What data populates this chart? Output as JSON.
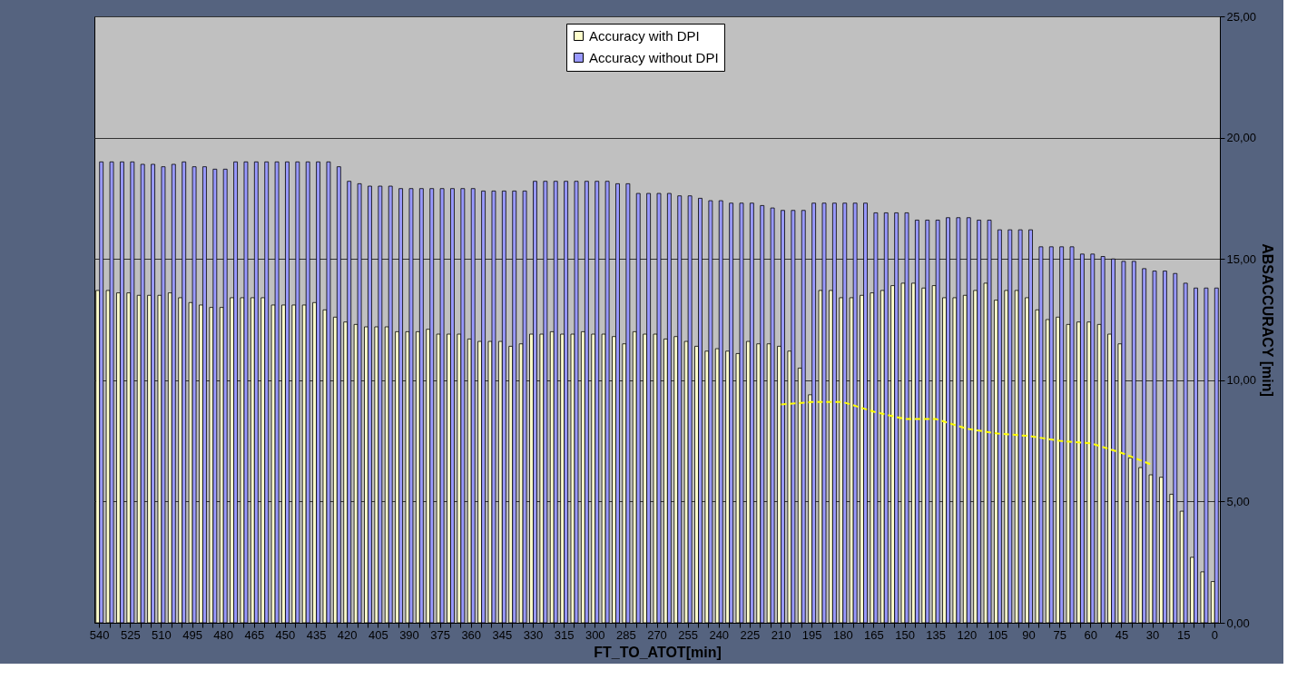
{
  "chart_data": {
    "type": "bar",
    "xlabel": "FT_TO_ATOT[min]",
    "ylabel": "ABSACCURACY [min]",
    "categories": [
      "540",
      null,
      null,
      "525",
      null,
      null,
      "510",
      null,
      null,
      "495",
      null,
      null,
      "480",
      null,
      null,
      "465",
      null,
      null,
      "450",
      null,
      null,
      "435",
      null,
      null,
      "420",
      null,
      null,
      "405",
      null,
      null,
      "390",
      null,
      null,
      "375",
      null,
      null,
      "360",
      null,
      null,
      "345",
      null,
      null,
      "330",
      null,
      null,
      "315",
      null,
      null,
      "300",
      null,
      null,
      "285",
      null,
      null,
      "270",
      null,
      null,
      "255",
      null,
      null,
      "240",
      null,
      null,
      "225",
      null,
      null,
      "210",
      null,
      null,
      "195",
      null,
      null,
      "180",
      null,
      null,
      "165",
      null,
      null,
      "150",
      null,
      null,
      "135",
      null,
      null,
      "120",
      null,
      null,
      "105",
      null,
      null,
      "90",
      null,
      null,
      "75",
      null,
      null,
      "60",
      null,
      null,
      "45",
      null,
      null,
      "30",
      null,
      null,
      "15",
      null,
      null,
      "0"
    ],
    "series": [
      {
        "name": "Accuracy with DPI",
        "color": "#ffffcc",
        "values": [
          13.7,
          13.7,
          13.6,
          13.6,
          13.5,
          13.5,
          13.5,
          13.6,
          13.4,
          13.2,
          13.1,
          13.0,
          13.0,
          13.4,
          13.4,
          13.4,
          13.4,
          13.1,
          13.1,
          13.1,
          13.1,
          13.2,
          12.9,
          12.6,
          12.4,
          12.3,
          12.2,
          12.2,
          12.2,
          12.0,
          12.0,
          12.0,
          12.1,
          11.9,
          11.9,
          11.9,
          11.7,
          11.6,
          11.6,
          11.6,
          11.4,
          11.5,
          11.9,
          11.9,
          12.0,
          11.9,
          11.9,
          12.0,
          11.9,
          11.9,
          11.8,
          11.5,
          12.0,
          11.9,
          11.9,
          11.7,
          11.8,
          11.6,
          11.4,
          11.2,
          11.3,
          11.2,
          11.1,
          11.6,
          11.5,
          11.5,
          11.4,
          11.2,
          10.5,
          9.4,
          13.7,
          13.7,
          13.4,
          13.4,
          13.5,
          13.6,
          13.7,
          13.9,
          14.0,
          14.0,
          13.8,
          13.9,
          13.4,
          13.4,
          13.5,
          13.7,
          14.0,
          13.3,
          13.7,
          13.7,
          13.4,
          12.9,
          12.5,
          12.6,
          12.3,
          12.4,
          12.4,
          12.3,
          11.9,
          11.5,
          6.8,
          6.4,
          6.1,
          6.0,
          5.3,
          4.6,
          2.7,
          2.1,
          1.7
        ]
      },
      {
        "name": "Accuracy without DPI",
        "color": "#9999ff",
        "values": [
          19.0,
          19.0,
          19.0,
          19.0,
          18.9,
          18.9,
          18.8,
          18.9,
          19.0,
          18.8,
          18.8,
          18.7,
          18.7,
          19.0,
          19.0,
          19.0,
          19.0,
          19.0,
          19.0,
          19.0,
          19.0,
          19.0,
          19.0,
          18.8,
          18.2,
          18.1,
          18.0,
          18.0,
          18.0,
          17.9,
          17.9,
          17.9,
          17.9,
          17.9,
          17.9,
          17.9,
          17.9,
          17.8,
          17.8,
          17.8,
          17.8,
          17.8,
          18.2,
          18.2,
          18.2,
          18.2,
          18.2,
          18.2,
          18.2,
          18.2,
          18.1,
          18.1,
          17.7,
          17.7,
          17.7,
          17.7,
          17.6,
          17.6,
          17.5,
          17.4,
          17.4,
          17.3,
          17.3,
          17.3,
          17.2,
          17.1,
          17.0,
          17.0,
          17.0,
          17.3,
          17.3,
          17.3,
          17.3,
          17.3,
          17.3,
          16.9,
          16.9,
          16.9,
          16.9,
          16.6,
          16.6,
          16.6,
          16.7,
          16.7,
          16.7,
          16.6,
          16.6,
          16.2,
          16.2,
          16.2,
          16.2,
          15.5,
          15.5,
          15.5,
          15.5,
          15.2,
          15.2,
          15.1,
          15.0,
          14.9,
          14.9,
          14.6,
          14.5,
          14.5,
          14.4,
          14.0,
          13.8,
          13.8,
          13.8
        ]
      },
      {
        "type": "line",
        "color": "#ffff00",
        "x": [
          "210",
          "195",
          "180",
          "165",
          "150",
          "135",
          "120",
          "105",
          "90",
          "75",
          "60",
          "45",
          "30"
        ],
        "values": [
          9.0,
          9.1,
          9.1,
          8.7,
          8.4,
          8.4,
          8.0,
          7.8,
          7.7,
          7.5,
          7.4,
          7.0,
          6.5
        ]
      }
    ],
    "line_style": "dashed",
    "marker": "none",
    "ylim": [
      0,
      25
    ],
    "yticks": [
      {
        "value": 0,
        "label": "0,00"
      },
      {
        "value": 5,
        "label": "5,00"
      },
      {
        "value": 10,
        "label": "10,00"
      },
      {
        "value": 15,
        "label": "15,00"
      },
      {
        "value": 20,
        "label": "20,00"
      },
      {
        "value": 25,
        "label": "25,00"
      }
    ],
    "grid": "y",
    "legend": "top"
  }
}
